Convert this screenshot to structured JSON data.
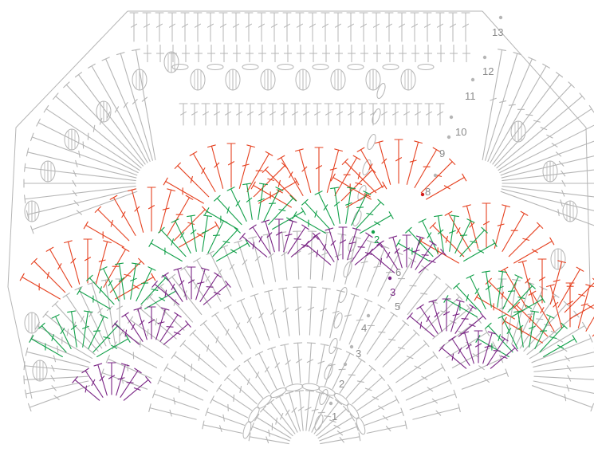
{
  "diagram": {
    "colors": {
      "base": "#b5b5b5",
      "red": "#e5401f",
      "green": "#12a04a",
      "purple": "#7a2585",
      "marker": "#d11a1a"
    },
    "row_labels": [
      {
        "text": "1",
        "color": "#8a8a8a"
      },
      {
        "text": "2",
        "color": "#8a8a8a"
      },
      {
        "text": "3",
        "color": "#8a8a8a"
      },
      {
        "text": "4",
        "color": "#8a8a8a"
      },
      {
        "text": "5",
        "color": "#8a8a8a"
      },
      {
        "text": "3",
        "color": "#7a2585"
      },
      {
        "text": "6",
        "color": "#8a8a8a"
      },
      {
        "text": "2",
        "color": "#12a04a"
      },
      {
        "text": "8",
        "color": "#8a8a8a"
      },
      {
        "text": "9",
        "color": "#8a8a8a"
      },
      {
        "text": "10",
        "color": "#8a8a8a"
      },
      {
        "text": "11",
        "color": "#8a8a8a"
      },
      {
        "text": "12",
        "color": "#8a8a8a"
      },
      {
        "text": "13",
        "color": "#8a8a8a"
      }
    ]
  }
}
